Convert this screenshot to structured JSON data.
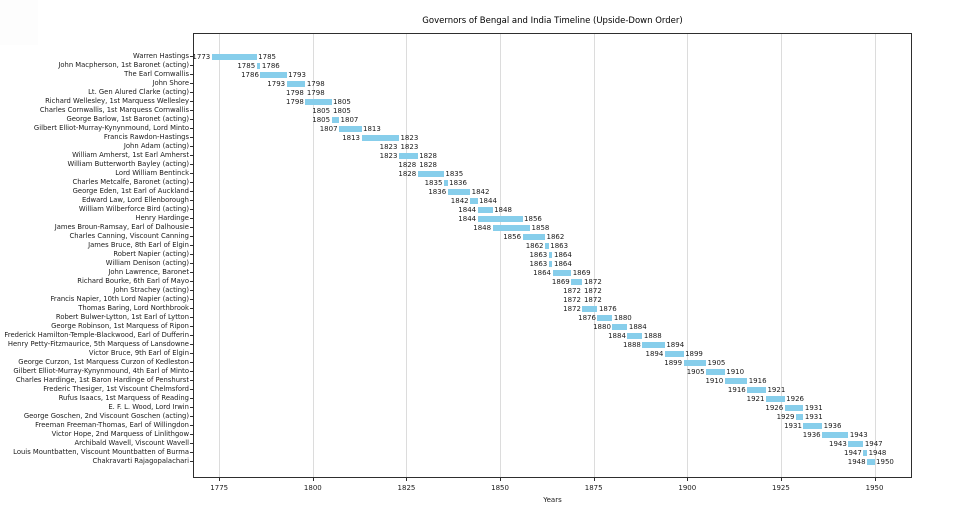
{
  "chart_data": {
    "type": "bar",
    "orientation": "horizontal",
    "title": "Governors of Bengal and India Timeline (Upside-Down Order)",
    "xlabel": "Years",
    "xlim": [
      1768,
      1960
    ],
    "xticks": [
      1775,
      1800,
      1825,
      1850,
      1875,
      1900,
      1925,
      1950
    ],
    "grid": "vertical-only",
    "legend": "none",
    "bar_color": "#87CEEB",
    "text_color": "#1a1a1a",
    "grid_color": "#dcdcdc",
    "spine_color": "#2e2e2e",
    "rows": [
      {
        "label": "Warren Hastings",
        "start": 1773,
        "end": 1785
      },
      {
        "label": "John Macpherson, 1st Baronet (acting)",
        "start": 1785,
        "end": 1786
      },
      {
        "label": "The Earl Cornwallis",
        "start": 1786,
        "end": 1793
      },
      {
        "label": "John Shore",
        "start": 1793,
        "end": 1798
      },
      {
        "label": "Lt. Gen Alured Clarke (acting)",
        "start": 1798,
        "end": 1798
      },
      {
        "label": "Richard Wellesley, 1st Marquess Wellesley",
        "start": 1798,
        "end": 1805
      },
      {
        "label": "Charles Cornwallis, 1st Marquess Cornwallis",
        "start": 1805,
        "end": 1805
      },
      {
        "label": "George Barlow, 1st Baronet (acting)",
        "start": 1805,
        "end": 1807
      },
      {
        "label": "Gilbert Elliot-Murray-Kynynmound, Lord Minto",
        "start": 1807,
        "end": 1813
      },
      {
        "label": "Francis Rawdon-Hastings",
        "start": 1813,
        "end": 1823
      },
      {
        "label": "John Adam (acting)",
        "start": 1823,
        "end": 1823
      },
      {
        "label": "William Amherst, 1st Earl Amherst",
        "start": 1823,
        "end": 1828
      },
      {
        "label": "William Butterworth Bayley (acting)",
        "start": 1828,
        "end": 1828
      },
      {
        "label": "Lord William Bentinck",
        "start": 1828,
        "end": 1835
      },
      {
        "label": "Charles Metcalfe, Baronet (acting)",
        "start": 1835,
        "end": 1836
      },
      {
        "label": "George Eden, 1st Earl of Auckland",
        "start": 1836,
        "end": 1842
      },
      {
        "label": "Edward Law, Lord Ellenborough",
        "start": 1842,
        "end": 1844
      },
      {
        "label": "William Wilberforce Bird (acting)",
        "start": 1844,
        "end": 1848
      },
      {
        "label": "Henry Hardinge",
        "start": 1844,
        "end": 1856
      },
      {
        "label": "James Broun-Ramsay, Earl of Dalhousie",
        "start": 1848,
        "end": 1858
      },
      {
        "label": "Charles Canning, Viscount Canning",
        "start": 1856,
        "end": 1862
      },
      {
        "label": "James Bruce, 8th Earl of Elgin",
        "start": 1862,
        "end": 1863
      },
      {
        "label": "Robert Napier (acting)",
        "start": 1863,
        "end": 1864
      },
      {
        "label": "William Denison (acting)",
        "start": 1863,
        "end": 1864
      },
      {
        "label": "John Lawrence, Baronet",
        "start": 1864,
        "end": 1869
      },
      {
        "label": "Richard Bourke, 6th Earl of Mayo",
        "start": 1869,
        "end": 1872
      },
      {
        "label": "John Strachey (acting)",
        "start": 1872,
        "end": 1872
      },
      {
        "label": "Francis Napier, 10th Lord Napier (acting)",
        "start": 1872,
        "end": 1872
      },
      {
        "label": "Thomas Baring, Lord Northbrook",
        "start": 1872,
        "end": 1876
      },
      {
        "label": "Robert Bulwer-Lytton, 1st Earl of Lytton",
        "start": 1876,
        "end": 1880
      },
      {
        "label": "George Robinson, 1st Marquess of Ripon",
        "start": 1880,
        "end": 1884
      },
      {
        "label": "Frederick Hamilton-Temple-Blackwood, Earl of Dufferin",
        "start": 1884,
        "end": 1888
      },
      {
        "label": "Henry Petty-Fitzmaurice, 5th Marquess of Lansdowne",
        "start": 1888,
        "end": 1894
      },
      {
        "label": "Victor Bruce, 9th Earl of Elgin",
        "start": 1894,
        "end": 1899
      },
      {
        "label": "George Curzon, 1st Marquess Curzon of Kedleston",
        "start": 1899,
        "end": 1905
      },
      {
        "label": "Gilbert Elliot-Murray-Kynynmound, 4th Earl of Minto",
        "start": 1905,
        "end": 1910
      },
      {
        "label": "Charles Hardinge, 1st Baron Hardinge of Penshurst",
        "start": 1910,
        "end": 1916
      },
      {
        "label": "Frederic Thesiger, 1st Viscount Chelmsford",
        "start": 1916,
        "end": 1921
      },
      {
        "label": "Rufus Isaacs, 1st Marquess of Reading",
        "start": 1921,
        "end": 1926
      },
      {
        "label": "E. F. L. Wood, Lord Irwin",
        "start": 1926,
        "end": 1931
      },
      {
        "label": "George Goschen, 2nd Viscount Goschen (acting)",
        "start": 1929,
        "end": 1931
      },
      {
        "label": "Freeman Freeman-Thomas, Earl of Willingdon",
        "start": 1931,
        "end": 1936
      },
      {
        "label": "Victor Hope, 2nd Marquess of Linlithgow",
        "start": 1936,
        "end": 1943
      },
      {
        "label": "Archibald Wavell, Viscount Wavell",
        "start": 1943,
        "end": 1947
      },
      {
        "label": "Louis Mountbatten, Viscount Mountbatten of Burma",
        "start": 1947,
        "end": 1948
      },
      {
        "label": "Chakravarti Rajagopalachari",
        "start": 1948,
        "end": 1950
      }
    ]
  }
}
